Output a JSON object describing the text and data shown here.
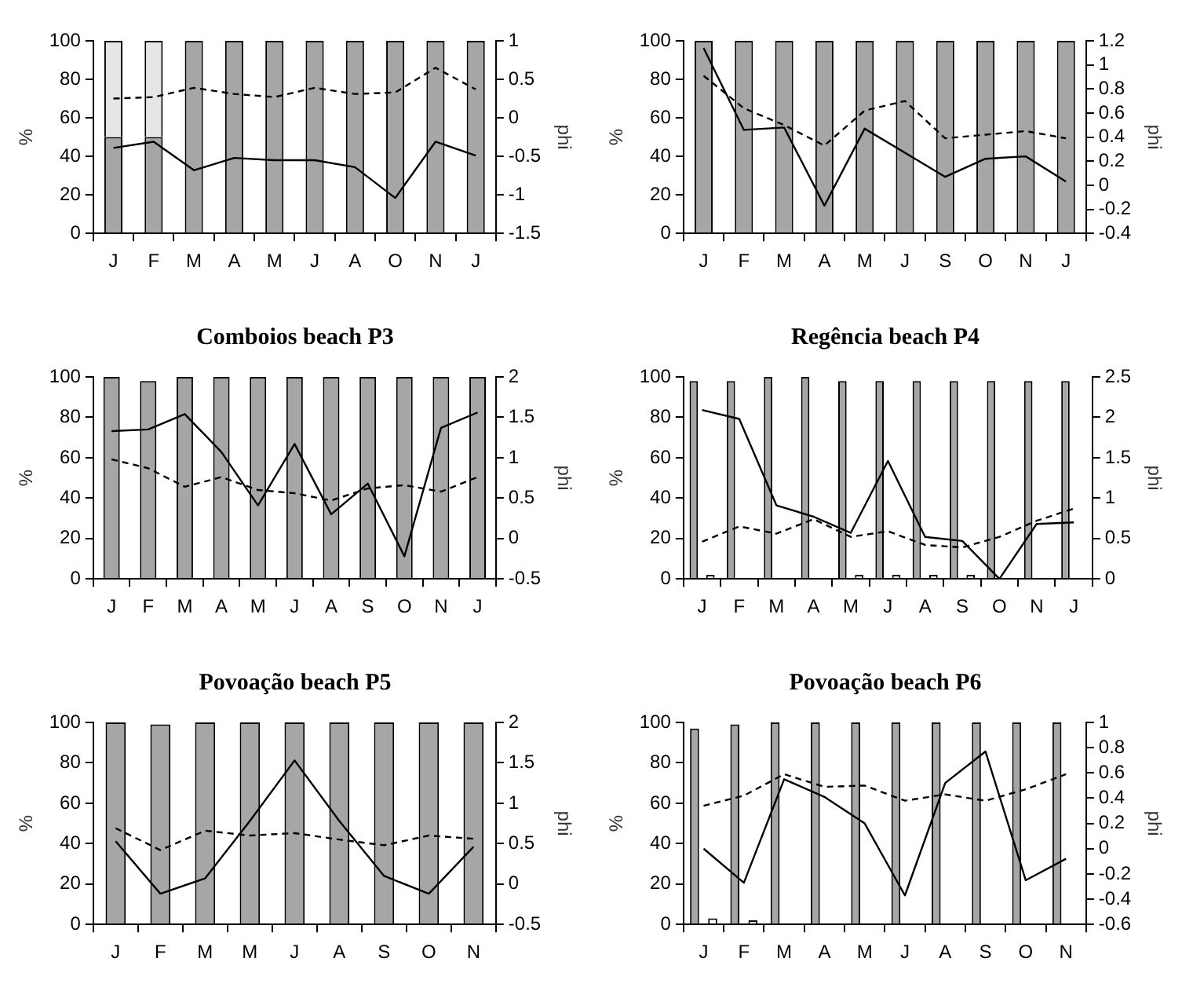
{
  "chart_data": [
    {
      "type": "bar",
      "ylabel": "%",
      "y2label": "phi",
      "stacked": true,
      "categories": [
        "J",
        "F",
        "M",
        "A",
        "M",
        "J",
        "A",
        "O",
        "N",
        "J"
      ],
      "ylim": [
        0,
        100
      ],
      "yticks": [
        0,
        20,
        40,
        60,
        80,
        100
      ],
      "y2lim": [
        -1.5,
        1
      ],
      "y2ticks": [
        -1.5,
        -1,
        -0.5,
        0,
        0.5,
        1
      ],
      "series": [
        {
          "color": "#a6a6a6",
          "values": [
            50,
            50,
            100,
            100,
            100,
            100,
            100,
            100,
            100,
            100
          ]
        },
        {
          "color": "#e6e6e6",
          "values": [
            50,
            50,
            0,
            0,
            0,
            0,
            0,
            0,
            0,
            0
          ]
        },
        {
          "type": "line",
          "axis": "y2",
          "color": "#000000",
          "line_style": "solid",
          "values": [
            -0.39,
            -0.31,
            -0.68,
            -0.52,
            -0.55,
            -0.55,
            -0.64,
            -1.04,
            -0.31,
            -0.49
          ]
        },
        {
          "type": "line",
          "axis": "y2",
          "color": "#000000",
          "line_style": "dashed",
          "values": [
            0.25,
            0.27,
            0.39,
            0.31,
            0.27,
            0.39,
            0.31,
            0.33,
            0.65,
            0.37
          ]
        }
      ]
    },
    {
      "type": "bar",
      "ylabel": "%",
      "y2label": "phi",
      "categories": [
        "J",
        "F",
        "M",
        "A",
        "M",
        "J",
        "S",
        "O",
        "N",
        "J"
      ],
      "ylim": [
        0,
        100
      ],
      "yticks": [
        0,
        20,
        40,
        60,
        80,
        100
      ],
      "y2lim": [
        -0.4,
        1.2
      ],
      "y2ticks": [
        -0.4,
        -0.2,
        0,
        0.2,
        0.4,
        0.6,
        0.8,
        1,
        1.2
      ],
      "series": [
        {
          "color": "#a6a6a6",
          "values": [
            100,
            100,
            100,
            100,
            100,
            100,
            100,
            100,
            100,
            100
          ]
        },
        {
          "type": "line",
          "axis": "y2",
          "color": "#000000",
          "line_style": "solid",
          "values": [
            1.14,
            0.46,
            0.48,
            -0.17,
            0.47,
            0.27,
            0.07,
            0.22,
            0.24,
            0.03
          ]
        },
        {
          "type": "line",
          "axis": "y2",
          "color": "#000000",
          "line_style": "dashed",
          "values": [
            0.91,
            0.64,
            0.5,
            0.33,
            0.62,
            0.7,
            0.39,
            0.42,
            0.45,
            0.39
          ]
        }
      ]
    },
    {
      "type": "bar",
      "title": "Comboios beach P3",
      "ylabel": "%",
      "y2label": "phi",
      "categories": [
        "J",
        "F",
        "M",
        "A",
        "M",
        "J",
        "A",
        "S",
        "O",
        "N",
        "J"
      ],
      "ylim": [
        0,
        100
      ],
      "yticks": [
        0,
        20,
        40,
        60,
        80,
        100
      ],
      "y2lim": [
        -0.5,
        2
      ],
      "y2ticks": [
        -0.5,
        0,
        0.5,
        1,
        1.5,
        2
      ],
      "series": [
        {
          "color": "#a6a6a6",
          "values": [
            100,
            98,
            100,
            100,
            100,
            100,
            100,
            100,
            100,
            100,
            100
          ]
        },
        {
          "type": "line",
          "axis": "y2",
          "color": "#000000",
          "line_style": "solid",
          "values": [
            1.33,
            1.35,
            1.54,
            1.07,
            0.41,
            1.17,
            0.3,
            0.68,
            -0.22,
            1.37,
            1.56
          ]
        },
        {
          "type": "line",
          "axis": "y2",
          "color": "#000000",
          "line_style": "dashed",
          "values": [
            0.98,
            0.87,
            0.64,
            0.76,
            0.6,
            0.56,
            0.47,
            0.62,
            0.66,
            0.58,
            0.76
          ]
        }
      ]
    },
    {
      "type": "bar",
      "title": "Regência beach P4",
      "ylabel": "%",
      "y2label": "phi",
      "categories": [
        "J",
        "F",
        "M",
        "A",
        "M",
        "J",
        "A",
        "S",
        "O",
        "N",
        "J"
      ],
      "ylim": [
        0,
        100
      ],
      "yticks": [
        0,
        20,
        40,
        60,
        80,
        100
      ],
      "y2lim": [
        0,
        2.5
      ],
      "y2ticks": [
        0,
        0.5,
        1,
        1.5,
        2,
        2.5
      ],
      "series": [
        {
          "color": "#a6a6a6",
          "values": [
            98,
            98,
            100,
            100,
            98,
            98,
            98,
            98,
            98,
            98,
            98
          ]
        },
        {
          "color": "#ffffff",
          "values": [
            2,
            0,
            0,
            0,
            2,
            2,
            2,
            2,
            0,
            0,
            0
          ]
        },
        {
          "type": "line",
          "axis": "y2",
          "color": "#000000",
          "line_style": "solid",
          "values": [
            2.09,
            1.98,
            0.91,
            0.77,
            0.57,
            1.46,
            0.52,
            0.47,
            0,
            0.68,
            0.7
          ]
        },
        {
          "type": "line",
          "axis": "y2",
          "color": "#000000",
          "line_style": "dashed",
          "values": [
            0.46,
            0.65,
            0.56,
            0.74,
            0.52,
            0.59,
            0.42,
            0.39,
            0.52,
            0.72,
            0.87
          ]
        }
      ]
    },
    {
      "type": "bar",
      "title": "Povoação beach P5",
      "ylabel": "%",
      "y2label": "phi",
      "categories": [
        "J",
        "F",
        "M",
        "M",
        "J",
        "A",
        "S",
        "O",
        "N"
      ],
      "ylim": [
        0,
        100
      ],
      "yticks": [
        0,
        20,
        40,
        60,
        80,
        100
      ],
      "y2lim": [
        -0.5,
        2
      ],
      "y2ticks": [
        -0.5,
        0,
        0.5,
        1,
        1.5,
        2
      ],
      "series": [
        {
          "color": "#a6a6a6",
          "values": [
            100,
            99,
            100,
            100,
            100,
            100,
            100,
            100,
            100
          ]
        },
        {
          "type": "line",
          "axis": "y2",
          "color": "#000000",
          "line_style": "solid",
          "values": [
            0.53,
            -0.12,
            0.07,
            0.78,
            1.53,
            0.78,
            0.1,
            -0.12,
            0.46
          ]
        },
        {
          "type": "line",
          "axis": "y2",
          "color": "#000000",
          "line_style": "dashed",
          "values": [
            0.69,
            0.42,
            0.66,
            0.6,
            0.63,
            0.55,
            0.48,
            0.6,
            0.56
          ]
        }
      ]
    },
    {
      "type": "bar",
      "title": "Povoação beach P6",
      "ylabel": "%",
      "y2label": "phi",
      "categories": [
        "J",
        "F",
        "M",
        "A",
        "M",
        "J",
        "A",
        "S",
        "O",
        "N"
      ],
      "ylim": [
        0,
        100
      ],
      "yticks": [
        0,
        20,
        40,
        60,
        80,
        100
      ],
      "y2lim": [
        -0.6,
        1
      ],
      "y2ticks": [
        -0.6,
        -0.4,
        -0.2,
        0,
        0.2,
        0.4,
        0.6,
        0.8,
        1
      ],
      "series": [
        {
          "color": "#a6a6a6",
          "values": [
            97,
            99,
            100,
            100,
            100,
            100,
            100,
            100,
            100,
            100
          ]
        },
        {
          "color": "#ffffff",
          "values": [
            3,
            2,
            0,
            0,
            0,
            0,
            0,
            0,
            0,
            0
          ]
        },
        {
          "type": "line",
          "axis": "y2",
          "color": "#000000",
          "line_style": "solid",
          "values": [
            0,
            -0.27,
            0.55,
            0.41,
            0.2,
            -0.37,
            0.52,
            0.77,
            -0.25,
            -0.08
          ]
        },
        {
          "type": "line",
          "axis": "y2",
          "color": "#000000",
          "line_style": "dashed",
          "values": [
            0.34,
            0.42,
            0.59,
            0.49,
            0.5,
            0.38,
            0.43,
            0.38,
            0.47,
            0.59
          ]
        }
      ]
    }
  ]
}
